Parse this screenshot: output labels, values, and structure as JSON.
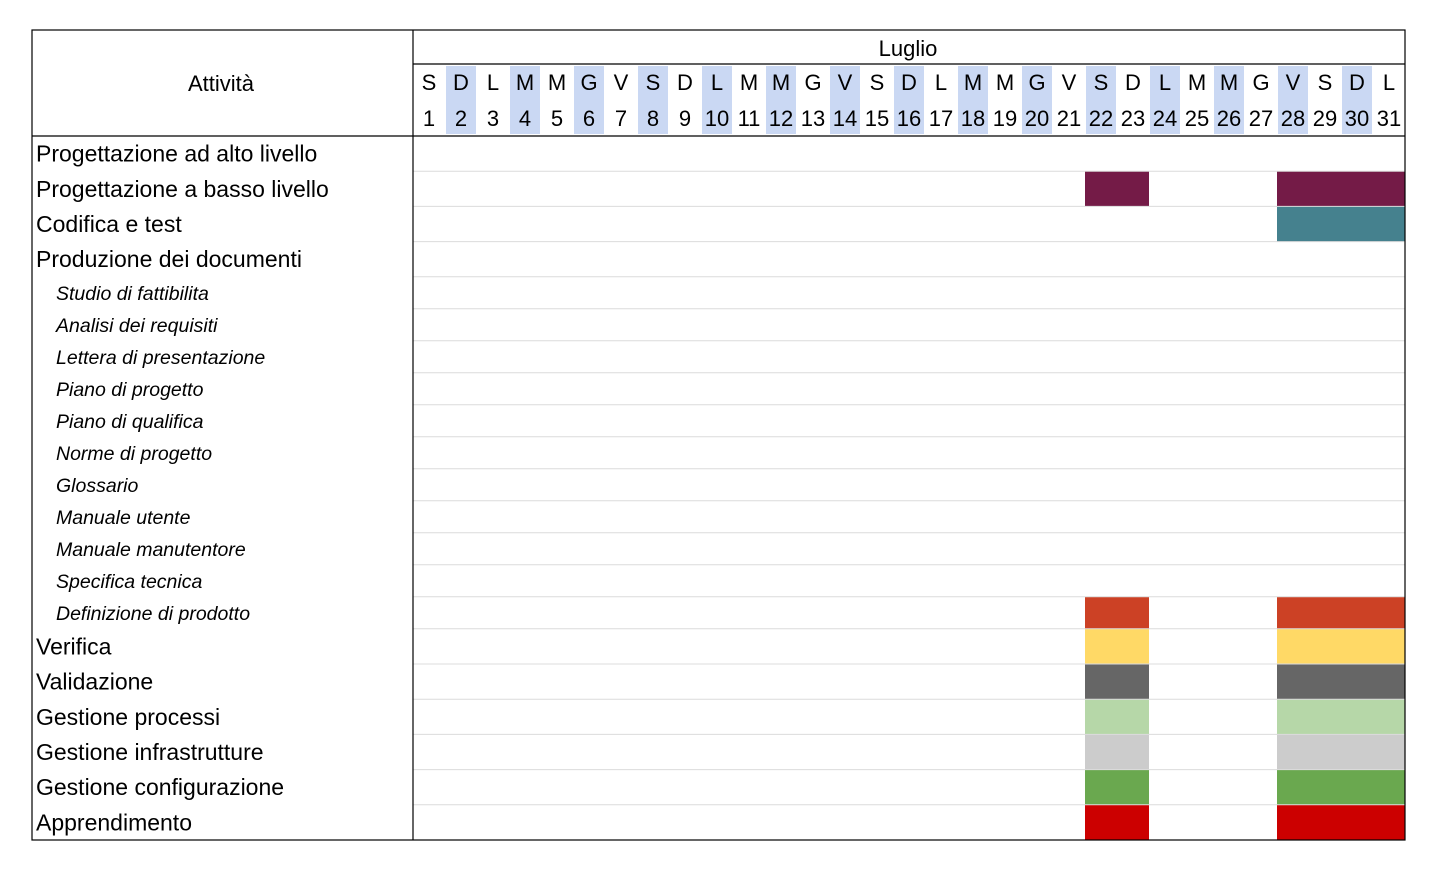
{
  "chart_data": {
    "type": "table",
    "header_left": "Attività",
    "month": "Luglio",
    "days": [
      {
        "n": "1",
        "d": "S",
        "hl": false
      },
      {
        "n": "2",
        "d": "D",
        "hl": true
      },
      {
        "n": "3",
        "d": "L",
        "hl": false
      },
      {
        "n": "4",
        "d": "M",
        "hl": true
      },
      {
        "n": "5",
        "d": "M",
        "hl": false
      },
      {
        "n": "6",
        "d": "G",
        "hl": true
      },
      {
        "n": "7",
        "d": "V",
        "hl": false
      },
      {
        "n": "8",
        "d": "S",
        "hl": true
      },
      {
        "n": "9",
        "d": "D",
        "hl": false
      },
      {
        "n": "10",
        "d": "L",
        "hl": true
      },
      {
        "n": "11",
        "d": "M",
        "hl": false
      },
      {
        "n": "12",
        "d": "M",
        "hl": true
      },
      {
        "n": "13",
        "d": "G",
        "hl": false
      },
      {
        "n": "14",
        "d": "V",
        "hl": true
      },
      {
        "n": "15",
        "d": "S",
        "hl": false
      },
      {
        "n": "16",
        "d": "D",
        "hl": true
      },
      {
        "n": "17",
        "d": "L",
        "hl": false
      },
      {
        "n": "18",
        "d": "M",
        "hl": true
      },
      {
        "n": "19",
        "d": "M",
        "hl": false
      },
      {
        "n": "20",
        "d": "G",
        "hl": true
      },
      {
        "n": "21",
        "d": "V",
        "hl": false
      },
      {
        "n": "22",
        "d": "S",
        "hl": true
      },
      {
        "n": "23",
        "d": "D",
        "hl": false
      },
      {
        "n": "24",
        "d": "L",
        "hl": true
      },
      {
        "n": "25",
        "d": "M",
        "hl": false
      },
      {
        "n": "26",
        "d": "M",
        "hl": true
      },
      {
        "n": "27",
        "d": "G",
        "hl": false
      },
      {
        "n": "28",
        "d": "V",
        "hl": true
      },
      {
        "n": "29",
        "d": "S",
        "hl": false
      },
      {
        "n": "30",
        "d": "D",
        "hl": true
      },
      {
        "n": "31",
        "d": "L",
        "hl": false
      }
    ],
    "highlight_color": "#cad8f3",
    "rows": [
      {
        "label": "Progettazione ad alto livello",
        "sub": false,
        "bars": []
      },
      {
        "label": "Progettazione a basso livello",
        "sub": false,
        "bars": [
          [
            22,
            23
          ],
          [
            28,
            31
          ]
        ],
        "color": "#741b47"
      },
      {
        "label": "Codifica e test",
        "sub": false,
        "bars": [
          [
            28,
            31
          ]
        ],
        "color": "#45818e"
      },
      {
        "label": "Produzione dei documenti",
        "sub": false,
        "bars": []
      },
      {
        "label": "Studio di fattibilita",
        "sub": true,
        "bars": []
      },
      {
        "label": "Analisi dei requisiti",
        "sub": true,
        "bars": []
      },
      {
        "label": "Lettera di presentazione",
        "sub": true,
        "bars": []
      },
      {
        "label": "Piano di progetto",
        "sub": true,
        "bars": []
      },
      {
        "label": "Piano di qualifica",
        "sub": true,
        "bars": []
      },
      {
        "label": "Norme di progetto",
        "sub": true,
        "bars": []
      },
      {
        "label": "Glossario",
        "sub": true,
        "bars": []
      },
      {
        "label": "Manuale utente",
        "sub": true,
        "bars": []
      },
      {
        "label": "Manuale manutentore",
        "sub": true,
        "bars": []
      },
      {
        "label": "Specifica tecnica",
        "sub": true,
        "bars": []
      },
      {
        "label": "Definizione di prodotto",
        "sub": true,
        "bars": [
          [
            22,
            23
          ],
          [
            28,
            31
          ]
        ],
        "color": "#cc4125"
      },
      {
        "label": "Verifica",
        "sub": false,
        "bars": [
          [
            22,
            23
          ],
          [
            28,
            31
          ]
        ],
        "color": "#ffd966"
      },
      {
        "label": "Validazione",
        "sub": false,
        "bars": [
          [
            22,
            23
          ],
          [
            28,
            31
          ]
        ],
        "color": "#666666"
      },
      {
        "label": "Gestione processi",
        "sub": false,
        "bars": [
          [
            22,
            23
          ],
          [
            28,
            31
          ]
        ],
        "color": "#b6d7a8"
      },
      {
        "label": "Gestione infrastrutture",
        "sub": false,
        "bars": [
          [
            22,
            23
          ],
          [
            28,
            31
          ]
        ],
        "color": "#cccccc"
      },
      {
        "label": "Gestione configurazione",
        "sub": false,
        "bars": [
          [
            22,
            23
          ],
          [
            28,
            31
          ]
        ],
        "color": "#6aa84f"
      },
      {
        "label": "Apprendimento",
        "sub": false,
        "bars": [
          [
            22,
            23
          ],
          [
            28,
            31
          ]
        ],
        "color": "#cc0000"
      }
    ]
  }
}
